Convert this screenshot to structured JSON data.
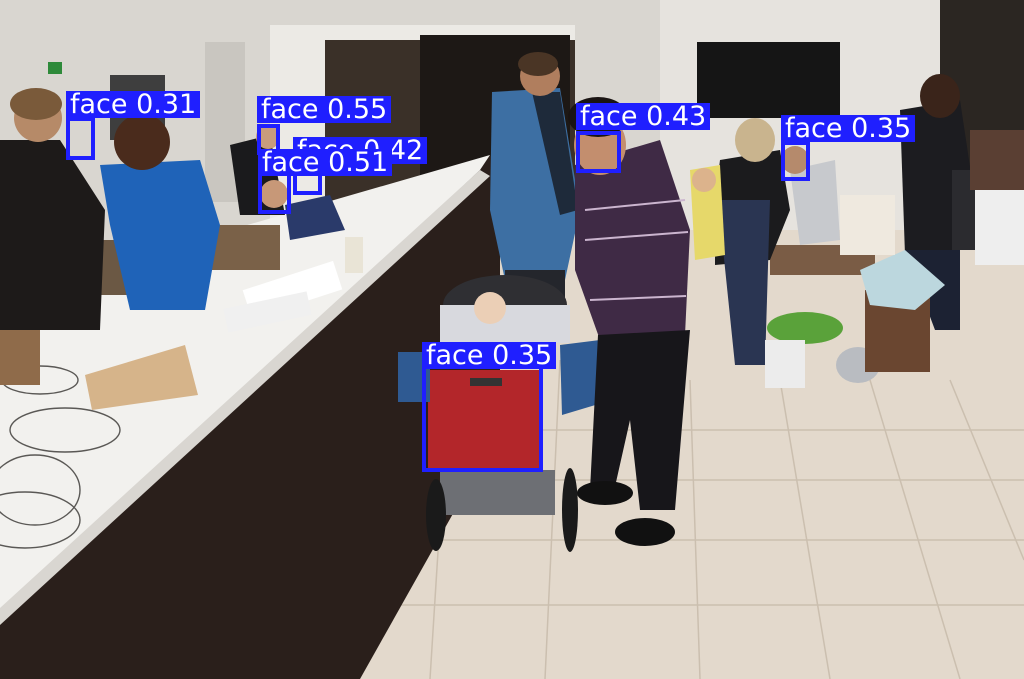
{
  "image": {
    "kind": "object-detection result photo",
    "scene": "indoor craft fair hall with long white counter, stroller and visitors",
    "box_color": "#1f1fff",
    "label_text_color": "#ffffff"
  },
  "detections": [
    {
      "id": "det-1",
      "label": "face",
      "score": "0.31",
      "caption": "face 0.31"
    },
    {
      "id": "det-2",
      "label": "face",
      "score": "0.55",
      "caption": "face 0.55"
    },
    {
      "id": "det-3",
      "label": "face",
      "score": "0.42",
      "caption": "face 0.42"
    },
    {
      "id": "det-4",
      "label": "face",
      "score": "0.51",
      "caption": "face 0.51"
    },
    {
      "id": "det-5",
      "label": "face",
      "score": "0.43",
      "caption": "face 0.43"
    },
    {
      "id": "det-6",
      "label": "face",
      "score": "0.35",
      "caption": "face 0.35"
    },
    {
      "id": "det-7",
      "label": "face",
      "score": "0.35",
      "caption": "face 0.35"
    }
  ]
}
